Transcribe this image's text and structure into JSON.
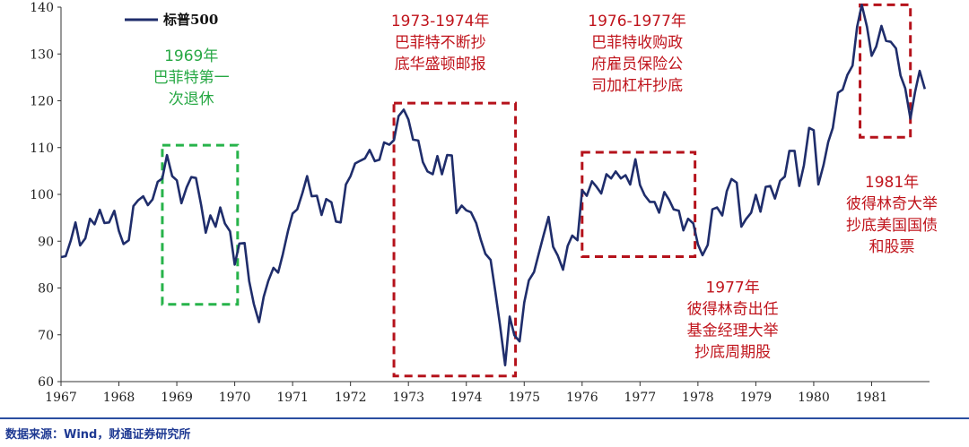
{
  "chart_data": {
    "type": "line",
    "legend": "标普500",
    "series_color": "#1f2d6b",
    "ylim": [
      60,
      140
    ],
    "yticks": [
      60,
      70,
      80,
      90,
      100,
      110,
      120,
      130,
      140
    ],
    "xlim": [
      1967,
      1982
    ],
    "xticks": [
      "1967",
      "1968",
      "1969",
      "1970",
      "1971",
      "1972",
      "1973",
      "1974",
      "1975",
      "1976",
      "1977",
      "1978",
      "1979",
      "1980",
      "1981"
    ],
    "x": [
      1967.0,
      1967.08,
      1967.17,
      1967.25,
      1967.33,
      1967.42,
      1967.5,
      1967.58,
      1967.67,
      1967.75,
      1967.83,
      1967.92,
      1968.0,
      1968.08,
      1968.17,
      1968.25,
      1968.33,
      1968.42,
      1968.5,
      1968.58,
      1968.67,
      1968.75,
      1968.83,
      1968.92,
      1969.0,
      1969.08,
      1969.17,
      1969.25,
      1969.33,
      1969.42,
      1969.5,
      1969.58,
      1969.67,
      1969.75,
      1969.83,
      1969.92,
      1970.0,
      1970.08,
      1970.17,
      1970.25,
      1970.33,
      1970.42,
      1970.5,
      1970.58,
      1970.67,
      1970.75,
      1970.83,
      1970.92,
      1971.0,
      1971.08,
      1971.17,
      1971.25,
      1971.33,
      1971.42,
      1971.5,
      1971.58,
      1971.67,
      1971.75,
      1971.83,
      1971.92,
      1972.0,
      1972.08,
      1972.17,
      1972.25,
      1972.33,
      1972.42,
      1972.5,
      1972.58,
      1972.67,
      1972.75,
      1972.83,
      1972.92,
      1973.0,
      1973.08,
      1973.17,
      1973.25,
      1973.33,
      1973.42,
      1973.5,
      1973.58,
      1973.67,
      1973.75,
      1973.83,
      1973.92,
      1974.0,
      1974.08,
      1974.17,
      1974.25,
      1974.33,
      1974.42,
      1974.5,
      1974.58,
      1974.67,
      1974.75,
      1974.83,
      1974.92,
      1975.0,
      1975.08,
      1975.17,
      1975.25,
      1975.33,
      1975.42,
      1975.5,
      1975.58,
      1975.67,
      1975.75,
      1975.83,
      1975.92,
      1976.0,
      1976.08,
      1976.17,
      1976.25,
      1976.33,
      1976.42,
      1976.5,
      1976.58,
      1976.67,
      1976.75,
      1976.83,
      1976.92,
      1977.0,
      1977.08,
      1977.17,
      1977.25,
      1977.33,
      1977.42,
      1977.5,
      1977.58,
      1977.67,
      1977.75,
      1977.83,
      1977.92,
      1978.0,
      1978.08,
      1978.17,
      1978.25,
      1978.33,
      1978.42,
      1978.5,
      1978.58,
      1978.67,
      1978.75,
      1978.83,
      1978.92,
      1979.0,
      1979.08,
      1979.17,
      1979.25,
      1979.33,
      1979.42,
      1979.5,
      1979.58,
      1979.67,
      1979.75,
      1979.83,
      1979.92,
      1980.0,
      1980.08,
      1980.17,
      1980.25,
      1980.33,
      1980.42,
      1980.5,
      1980.58,
      1980.67,
      1980.75,
      1980.83,
      1980.92,
      1981.0,
      1981.08,
      1981.17,
      1981.25,
      1981.33,
      1981.42,
      1981.5,
      1981.58,
      1981.67,
      1981.75,
      1981.83,
      1981.92
    ],
    "values": [
      86.6,
      86.8,
      90.2,
      94.0,
      89.1,
      90.6,
      94.8,
      93.6,
      96.7,
      93.9,
      94.0,
      96.5,
      92.2,
      89.4,
      90.2,
      97.5,
      98.7,
      99.6,
      97.7,
      98.9,
      102.7,
      103.4,
      108.4,
      103.9,
      103.0,
      98.1,
      101.5,
      103.7,
      103.5,
      97.7,
      91.8,
      95.5,
      93.1,
      97.2,
      93.8,
      92.1,
      85.0,
      89.5,
      89.6,
      81.5,
      76.6,
      72.7,
      78.1,
      81.5,
      84.3,
      83.3,
      87.2,
      92.2,
      95.9,
      96.8,
      100.3,
      103.9,
      99.6,
      99.7,
      95.6,
      99.0,
      98.3,
      94.2,
      94.0,
      102.1,
      103.9,
      106.6,
      107.2,
      107.7,
      109.5,
      107.1,
      107.4,
      111.1,
      110.6,
      111.6,
      116.7,
      118.1,
      116.0,
      111.7,
      111.5,
      106.9,
      104.9,
      104.3,
      108.2,
      104.3,
      108.4,
      108.3,
      96.0,
      97.6,
      96.6,
      96.2,
      93.9,
      90.3,
      87.3,
      86.0,
      79.3,
      72.2,
      63.5,
      73.9,
      69.9,
      68.6,
      76.9,
      81.6,
      83.4,
      87.3,
      91.1,
      95.2,
      88.8,
      86.9,
      83.9,
      89.0,
      91.2,
      90.2,
      100.9,
      99.7,
      102.8,
      101.6,
      100.2,
      104.3,
      103.4,
      104.9,
      103.4,
      104.1,
      102.1,
      107.5,
      102.0,
      99.8,
      98.4,
      98.4,
      96.1,
      100.5,
      98.9,
      96.8,
      96.5,
      92.3,
      94.8,
      93.8,
      89.3,
      87.0,
      89.2,
      96.8,
      97.2,
      95.5,
      100.7,
      103.3,
      102.5,
      93.1,
      94.7,
      96.1,
      99.9,
      96.3,
      101.6,
      101.8,
      99.1,
      102.9,
      103.8,
      109.3,
      109.3,
      101.8,
      106.2,
      114.2,
      113.7,
      102.1,
      106.3,
      111.2,
      114.2,
      121.7,
      122.4,
      125.5,
      127.5,
      135.8,
      140.5,
      135.8,
      129.6,
      131.6,
      136.0,
      132.8,
      132.6,
      131.2,
      125.4,
      122.7,
      116.2,
      121.9,
      126.4,
      122.5
    ],
    "annotations": [
      {
        "id": "a1969",
        "lines": [
          "1969年",
          "巴菲特第一",
          "次退休"
        ],
        "color": "#27a844"
      },
      {
        "id": "a1973",
        "lines": [
          "1973-1974年",
          "巴菲特不断抄",
          "底华盛顿邮报"
        ],
        "color": "#c0141c"
      },
      {
        "id": "a1976",
        "lines": [
          "1976-1977年",
          "巴菲特收购政",
          "府雇员保险公",
          "司加杠杆抄底"
        ],
        "color": "#c0141c"
      },
      {
        "id": "a1977",
        "lines": [
          "1977年",
          "彼得林奇出任",
          "基金经理大举",
          "抄底周期股"
        ],
        "color": "#c0141c"
      },
      {
        "id": "a1981",
        "lines": [
          "1981年",
          "彼得林奇大举",
          "抄底美国国债",
          "和股票"
        ],
        "color": "#c0141c"
      }
    ],
    "boxes_color": {
      "green": "#27b34a",
      "red": "#b5121b"
    }
  },
  "source": "数据来源：Wind，财通证券研究所"
}
